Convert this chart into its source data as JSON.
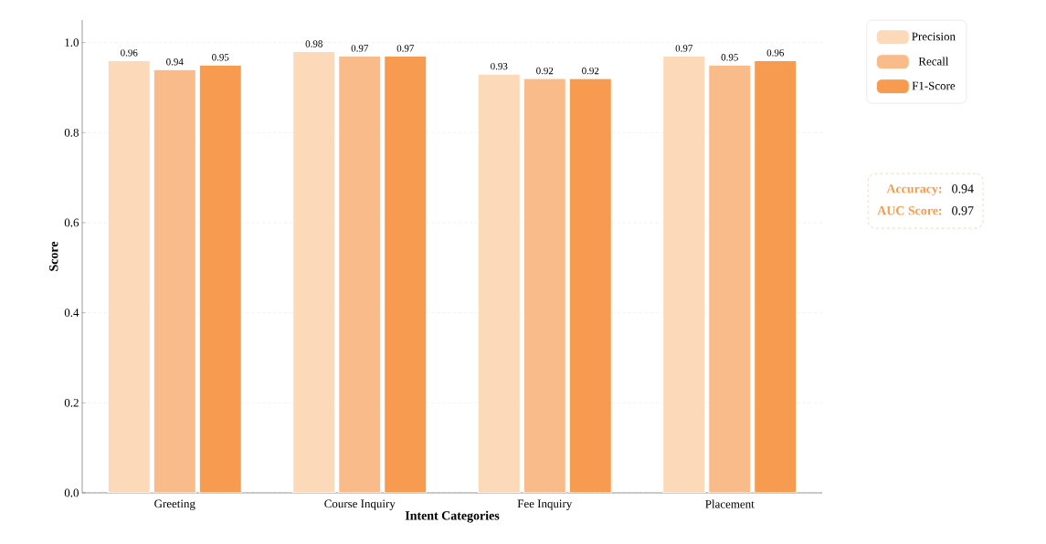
{
  "chart_data": {
    "type": "bar",
    "xlabel": "Intent Categories",
    "ylabel": "Score",
    "categories": [
      "Greeting",
      "Course Inquiry",
      "Fee Inquiry",
      "Placement"
    ],
    "series": [
      {
        "name": "Precision",
        "color": "#fcd9b8",
        "values": [
          0.96,
          0.98,
          0.93,
          0.97
        ]
      },
      {
        "name": "Recall",
        "color": "#f9bb8a",
        "values": [
          0.94,
          0.97,
          0.92,
          0.95
        ]
      },
      {
        "name": "F1-Score",
        "color": "#f79b50",
        "values": [
          0.95,
          0.97,
          0.92,
          0.96
        ]
      }
    ],
    "ylim": [
      0,
      1.05
    ],
    "yticks": [
      {
        "value": 0,
        "label": "0.0"
      },
      0.2,
      0.4,
      0.6,
      0.8,
      {
        "value": 1,
        "label": "1.0"
      }
    ],
    "grid": "y",
    "legend": "top right",
    "data_labels": true,
    "annotations": [
      "Accuracy:",
      "0.94",
      "AUC Score:",
      "0.97"
    ]
  }
}
